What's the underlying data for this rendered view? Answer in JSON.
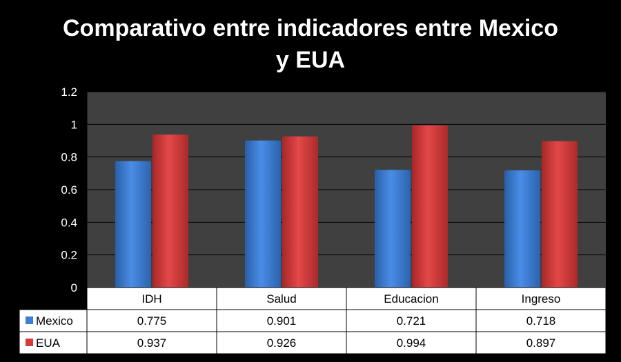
{
  "chart_data": {
    "type": "bar",
    "title_line1": "Comparativo entre indicadores entre Mexico",
    "title_line2": "y EUA",
    "categories": [
      "IDH",
      "Salud",
      "Educacion",
      "Ingreso"
    ],
    "series": [
      {
        "name": "Mexico",
        "values": [
          0.775,
          0.901,
          0.721,
          0.718
        ],
        "color": "#3d7fd6"
      },
      {
        "name": "EUA",
        "values": [
          0.937,
          0.926,
          0.994,
          0.897
        ],
        "color": "#d63a3a"
      }
    ],
    "ylim": [
      0,
      1.2
    ],
    "yticks": [
      "0",
      "0.2",
      "0.4",
      "0.6",
      "0.8",
      "1",
      "1.2"
    ],
    "table_values": [
      [
        "0.775",
        "0.901",
        "0.721",
        "0.718"
      ],
      [
        "0.937",
        "0.926",
        "0.994",
        "0.897"
      ]
    ],
    "grid": true,
    "legend": "data-table",
    "plot_background": "#404040"
  }
}
